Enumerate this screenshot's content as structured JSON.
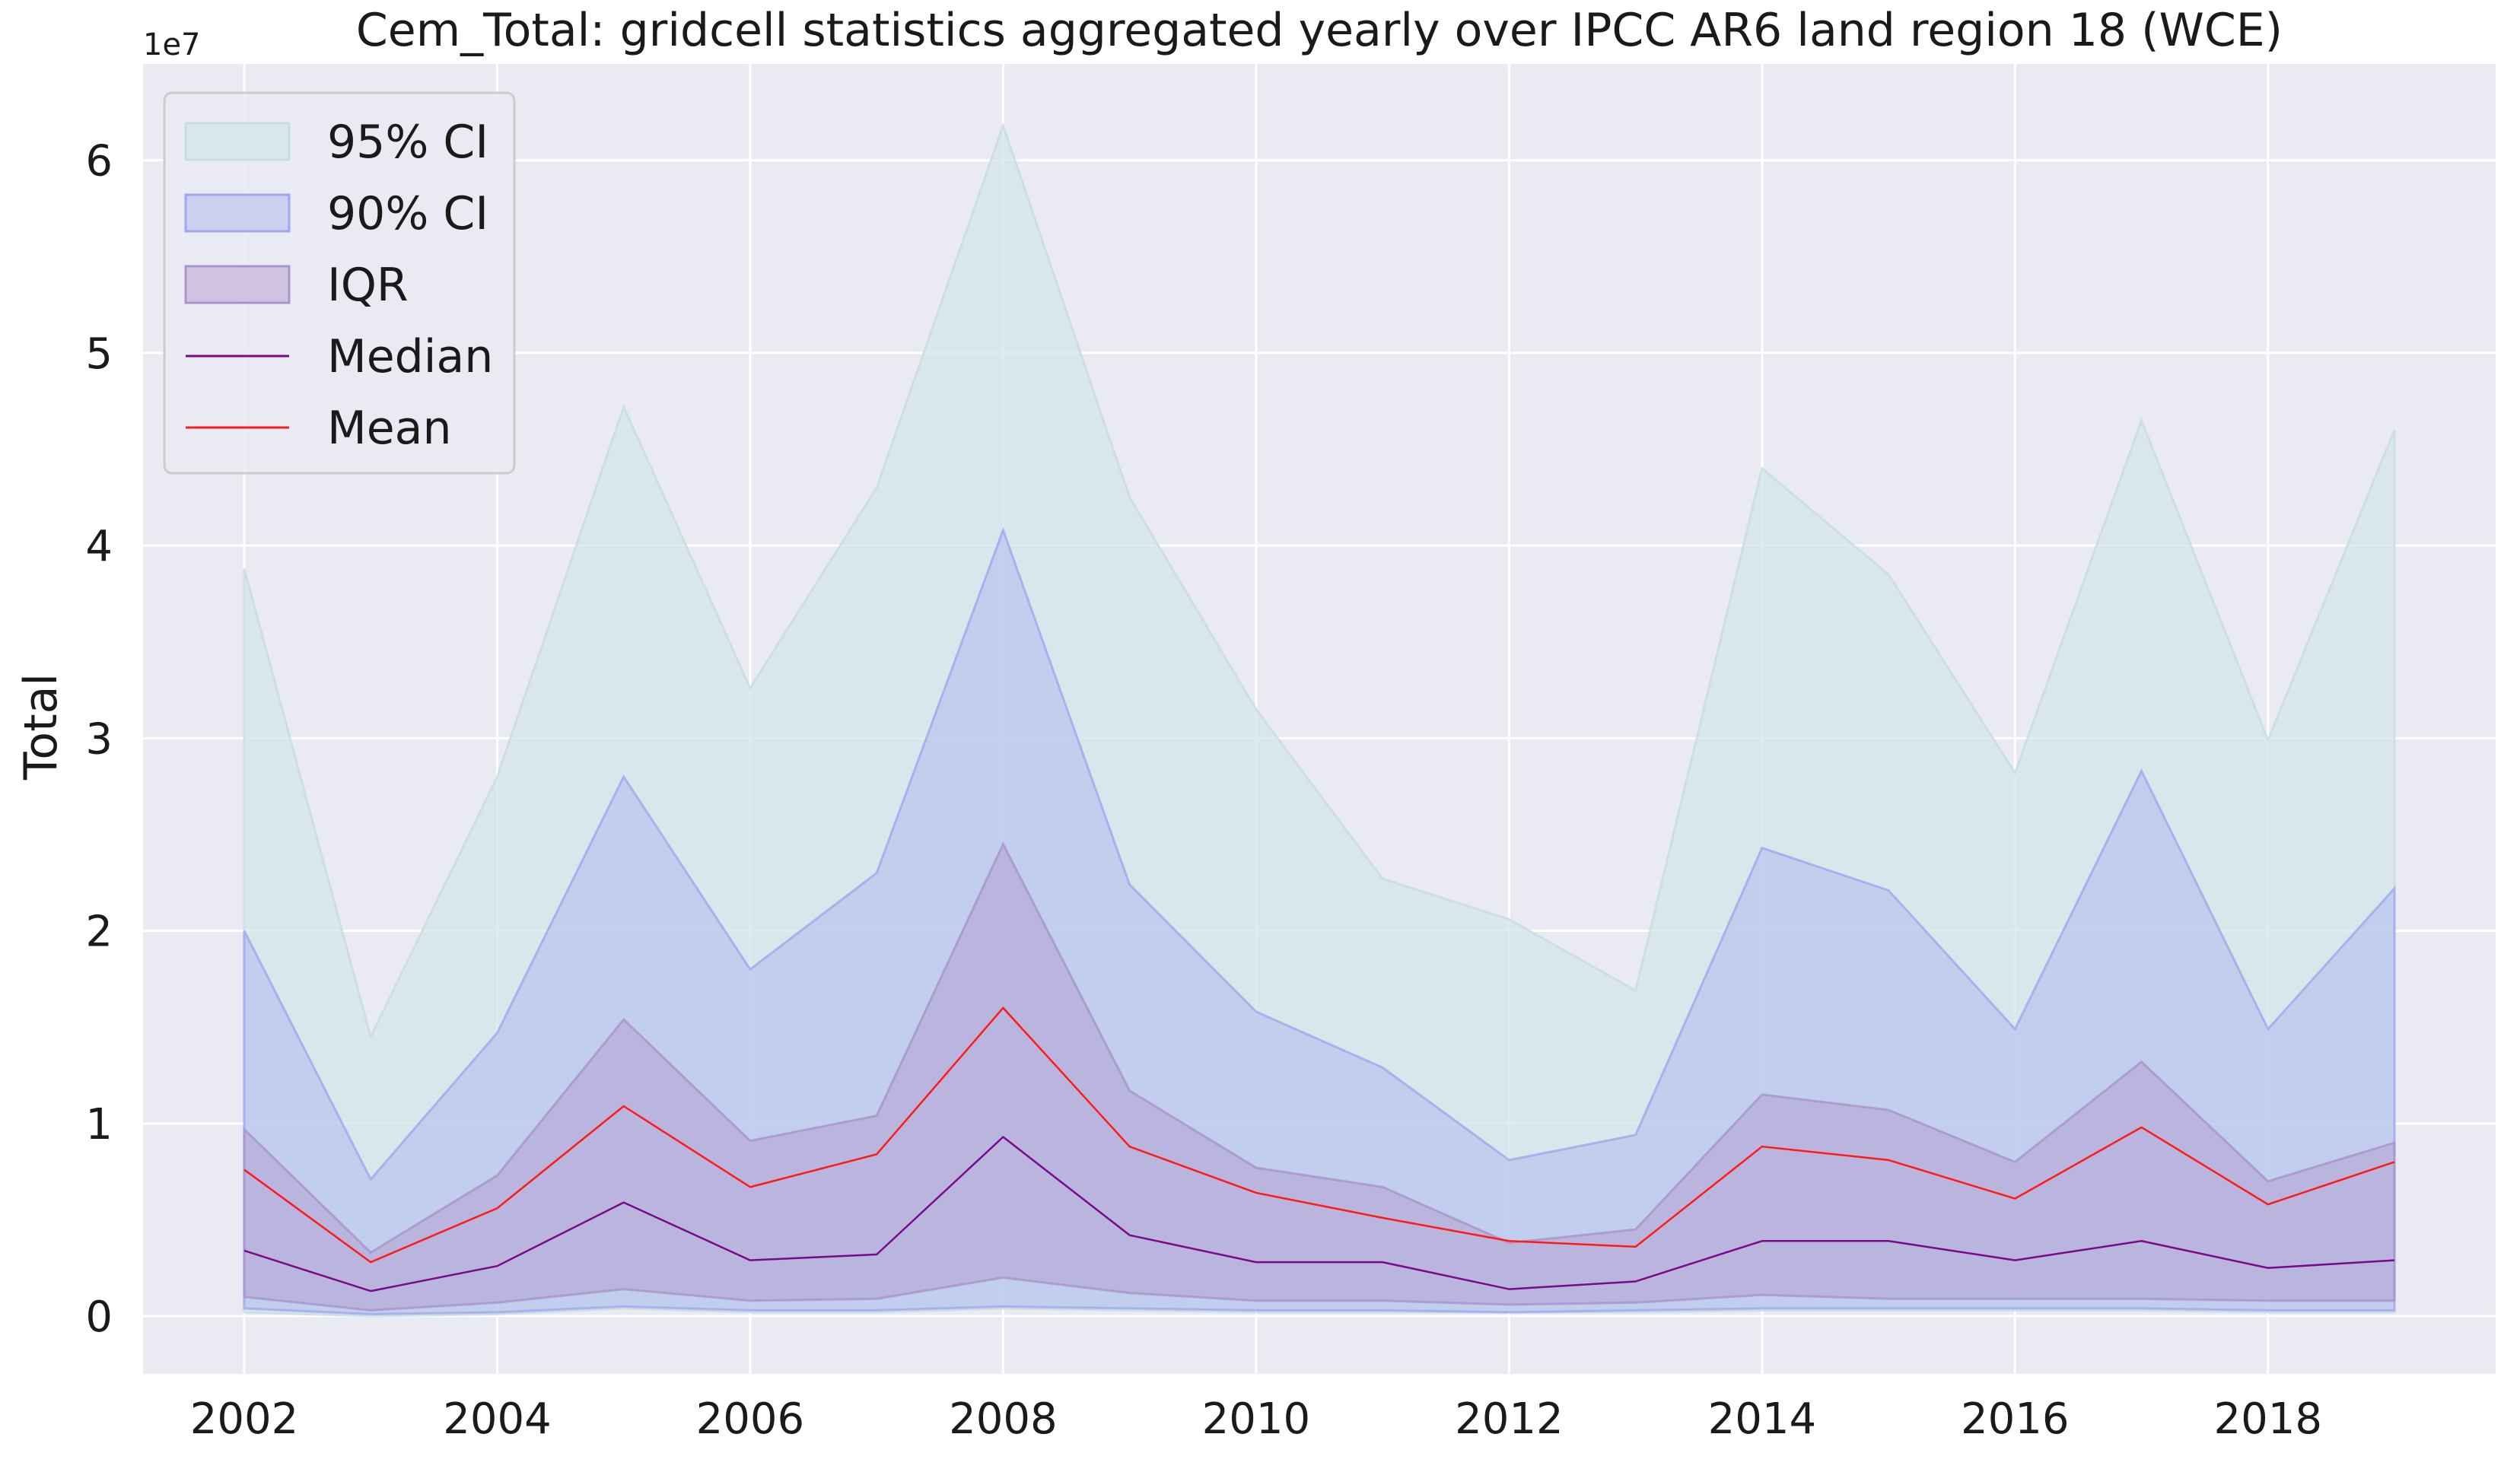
{
  "chart_data": {
    "type": "area",
    "title": "Cem_Total: gridcell statistics aggregated yearly over IPCC AR6 land region 18 (WCE)",
    "xlabel": "",
    "ylabel": "Total",
    "y_offset_label": "1e7",
    "x": [
      2002,
      2003,
      2004,
      2005,
      2006,
      2007,
      2008,
      2009,
      2010,
      2011,
      2012,
      2013,
      2014,
      2015,
      2016,
      2017,
      2018,
      2019
    ],
    "xlim": [
      2001.2,
      2019.8
    ],
    "ylim": [
      -0.3,
      6.5
    ],
    "x_ticks": [
      2002,
      2004,
      2006,
      2008,
      2010,
      2012,
      2014,
      2016,
      2018
    ],
    "x_tick_labels": [
      "2002",
      "2004",
      "2006",
      "2008",
      "2010",
      "2012",
      "2014",
      "2016",
      "2018"
    ],
    "y_ticks": [
      0,
      1,
      2,
      3,
      4,
      5,
      6
    ],
    "y_tick_labels": [
      "0",
      "1",
      "2",
      "3",
      "4",
      "5",
      "6"
    ],
    "grid": true,
    "legend_position": "top-left",
    "bands": [
      {
        "name": "95% CI",
        "color": "#d3e6ea",
        "edge": "#c6dce2",
        "lower": [
          0.02,
          0.0,
          0.01,
          0.04,
          0.02,
          0.02,
          0.04,
          0.03,
          0.02,
          0.02,
          0.02,
          0.02,
          0.03,
          0.03,
          0.03,
          0.03,
          0.02,
          0.02
        ],
        "upper": [
          3.88,
          1.45,
          2.8,
          4.72,
          3.26,
          4.3,
          6.18,
          4.25,
          3.15,
          2.27,
          2.06,
          1.69,
          4.4,
          3.85,
          2.82,
          4.65,
          2.99,
          4.6
        ]
      },
      {
        "name": "90% CI",
        "color": "#aab6ee",
        "edge": "#9fa8ee",
        "lower": [
          0.04,
          0.01,
          0.02,
          0.05,
          0.03,
          0.03,
          0.05,
          0.04,
          0.03,
          0.03,
          0.02,
          0.03,
          0.04,
          0.04,
          0.04,
          0.04,
          0.03,
          0.03
        ],
        "upper": [
          2.0,
          0.71,
          1.47,
          2.8,
          1.8,
          2.3,
          4.08,
          2.24,
          1.58,
          1.29,
          0.81,
          0.94,
          2.43,
          2.21,
          1.49,
          2.83,
          1.49,
          2.22
        ]
      },
      {
        "name": "IQR",
        "color": "#b49bd0",
        "edge": "#a894cc",
        "lower": [
          0.1,
          0.03,
          0.07,
          0.14,
          0.08,
          0.09,
          0.2,
          0.12,
          0.08,
          0.08,
          0.06,
          0.07,
          0.11,
          0.09,
          0.09,
          0.09,
          0.08,
          0.08
        ],
        "upper": [
          0.97,
          0.33,
          0.73,
          1.54,
          0.91,
          1.04,
          2.45,
          1.17,
          0.77,
          0.67,
          0.38,
          0.45,
          1.15,
          1.07,
          0.8,
          1.32,
          0.7,
          0.9
        ]
      }
    ],
    "lines": [
      {
        "name": "Median",
        "color": "#7a0a8a",
        "values": [
          0.34,
          0.13,
          0.26,
          0.59,
          0.29,
          0.32,
          0.93,
          0.42,
          0.28,
          0.28,
          0.14,
          0.18,
          0.39,
          0.39,
          0.29,
          0.39,
          0.25,
          0.29
        ]
      },
      {
        "name": "Mean",
        "color": "#ff1a1a",
        "values": [
          0.76,
          0.28,
          0.56,
          1.09,
          0.67,
          0.84,
          1.6,
          0.88,
          0.64,
          0.51,
          0.39,
          0.36,
          0.88,
          0.81,
          0.61,
          0.98,
          0.58,
          0.8
        ]
      }
    ]
  }
}
